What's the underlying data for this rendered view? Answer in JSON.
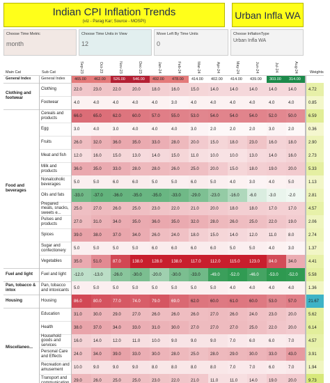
{
  "title": "Indian CPI Inflation Trends",
  "subtitle": "(viz - Parag Kar; Source - MOSPI)",
  "right_title": "Urban Infla WA",
  "controls": {
    "metric_label": "Choose Time Metric",
    "metric_value": "month",
    "units_label": "Choose Time Units in View",
    "units_value": "12",
    "shift_label": "Move Left By Time Units",
    "shift_value": "0",
    "type_label": "Choose InflationType",
    "type_value": "Urban Infla WA"
  },
  "headers": {
    "main_cat": "Main Cat",
    "sub_cat": "Sub Cat",
    "weights": "Weights"
  },
  "dates": [
    "Sep-23",
    "Oct-23",
    "Nov-23",
    "Dec-23",
    "Jan-24",
    "Feb-24",
    "Mar-24",
    "Apr-24",
    "May-24",
    "Jun-24",
    "Jul-24",
    "Aug-24"
  ],
  "groups": [
    {
      "name": "General Index",
      "rows": [
        {
          "sub": "General Index",
          "weight": "",
          "values": [
            "465.00",
            "462.00",
            "526.00",
            "546.00",
            "492.00",
            "478.00",
            "414.00",
            "402.00",
            "414.00",
            "439.00",
            "303.00",
            "314.00"
          ]
        }
      ]
    },
    {
      "name": "Clothing and footwear",
      "rows": [
        {
          "sub": "Clothing",
          "weight": "4.72",
          "values": [
            "22.0",
            "23.0",
            "22.0",
            "20.0",
            "18.0",
            "16.0",
            "15.0",
            "14.0",
            "14.0",
            "14.0",
            "14.0",
            "14.0"
          ]
        },
        {
          "sub": "Footwear",
          "weight": "0.85",
          "values": [
            "4.0",
            "4.0",
            "4.0",
            "4.0",
            "4.0",
            "3.0",
            "4.0",
            "4.0",
            "4.0",
            "4.0",
            "4.0",
            "4.0"
          ]
        }
      ]
    },
    {
      "name": "Food and beverages",
      "rows": [
        {
          "sub": "Cereals and products",
          "weight": "6.59",
          "values": [
            "66.0",
            "65.0",
            "62.0",
            "60.0",
            "57.0",
            "55.0",
            "53.0",
            "54.0",
            "54.0",
            "54.0",
            "52.0",
            "50.0"
          ]
        },
        {
          "sub": "Egg",
          "weight": "0.36",
          "values": [
            "3.0",
            "4.0",
            "3.0",
            "4.0",
            "4.0",
            "4.0",
            "3.0",
            "2.0",
            "2.0",
            "2.0",
            "3.0",
            "2.0"
          ]
        },
        {
          "sub": "Fruits",
          "weight": "2.90",
          "values": [
            "26.0",
            "32.0",
            "36.0",
            "35.0",
            "33.0",
            "28.0",
            "20.0",
            "15.0",
            "18.0",
            "23.0",
            "16.0",
            "18.0"
          ]
        },
        {
          "sub": "Meat and fish",
          "weight": "2.73",
          "values": [
            "12.0",
            "16.0",
            "15.0",
            "13.0",
            "14.0",
            "15.0",
            "11.0",
            "10.0",
            "10.0",
            "13.0",
            "14.0",
            "16.0"
          ]
        },
        {
          "sub": "Milk and products",
          "weight": "5.33",
          "values": [
            "36.0",
            "35.0",
            "33.0",
            "28.0",
            "28.0",
            "26.0",
            "25.0",
            "20.0",
            "15.0",
            "18.0",
            "19.0",
            "20.0"
          ]
        },
        {
          "sub": "Nonalcoholic beverages",
          "weight": "1.13",
          "values": [
            "5.0",
            "5.0",
            "6.0",
            "6.0",
            "5.0",
            "5.0",
            "6.0",
            "5.0",
            "4.0",
            "3.0",
            "4.0",
            "5.0"
          ]
        },
        {
          "sub": "Oils and fats",
          "weight": "2.81",
          "values": [
            "-33.0",
            "-37.0",
            "-36.0",
            "-35.0",
            "-35.0",
            "-33.0",
            "-29.0",
            "-23.0",
            "-16.0",
            "-6.0",
            "-3.0",
            "-2.0"
          ]
        },
        {
          "sub": "Prepared meals, snacks, sweets e...",
          "weight": "4.57",
          "values": [
            "25.0",
            "27.0",
            "26.0",
            "25.0",
            "23.0",
            "22.0",
            "21.0",
            "20.0",
            "18.0",
            "18.0",
            "17.0",
            "17.0"
          ]
        },
        {
          "sub": "Pulses and products",
          "weight": "2.06",
          "values": [
            "27.0",
            "31.0",
            "34.0",
            "35.0",
            "36.0",
            "35.0",
            "32.0",
            "28.0",
            "26.0",
            "25.0",
            "22.0",
            "19.0"
          ]
        },
        {
          "sub": "Spices",
          "weight": "2.74",
          "values": [
            "39.0",
            "38.0",
            "37.0",
            "34.0",
            "26.0",
            "24.0",
            "18.0",
            "15.0",
            "14.0",
            "12.0",
            "11.0",
            "8.0"
          ]
        },
        {
          "sub": "Sugar and confectionery",
          "weight": "1.37",
          "values": [
            "5.0",
            "5.0",
            "5.0",
            "5.0",
            "6.0",
            "6.0",
            "6.0",
            "6.0",
            "5.0",
            "5.0",
            "4.0",
            "3.0"
          ]
        },
        {
          "sub": "Vegetables",
          "weight": "4.41",
          "values": [
            "35.0",
            "51.0",
            "87.0",
            "138.0",
            "128.0",
            "138.0",
            "117.0",
            "112.0",
            "115.0",
            "123.0",
            "84.0",
            "34.0"
          ]
        }
      ]
    },
    {
      "name": "Fuel and light",
      "rows": [
        {
          "sub": "Fuel and light",
          "weight": "5.58",
          "values": [
            "-12.0",
            "-13.0",
            "-26.0",
            "-30.0",
            "-20.0",
            "-30.0",
            "-33.0",
            "-49.0",
            "-52.0",
            "-46.0",
            "-53.0",
            "-52.0"
          ]
        }
      ]
    },
    {
      "name": "Pan, tobacco & intox",
      "rows": [
        {
          "sub": "Pan, tobacco and intoxicants",
          "weight": "1.36",
          "values": [
            "5.0",
            "5.0",
            "5.0",
            "5.0",
            "5.0",
            "5.0",
            "5.0",
            "5.0",
            "4.0",
            "4.0",
            "4.0",
            "4.0"
          ]
        }
      ]
    },
    {
      "name": "Housing",
      "rows": [
        {
          "sub": "Housing",
          "weight": "21.67",
          "values": [
            "86.0",
            "80.0",
            "77.0",
            "74.0",
            "79.0",
            "69.0",
            "62.0",
            "60.0",
            "61.0",
            "60.0",
            "53.0",
            "57.0"
          ]
        }
      ]
    },
    {
      "name": "Miscellaneo...",
      "rows": [
        {
          "sub": "Education",
          "weight": "5.62",
          "values": [
            "31.0",
            "30.0",
            "29.0",
            "27.0",
            "26.0",
            "26.0",
            "26.0",
            "27.0",
            "26.0",
            "24.0",
            "23.0",
            "20.0"
          ]
        },
        {
          "sub": "Health",
          "weight": "6.14",
          "values": [
            "38.0",
            "37.0",
            "34.0",
            "33.0",
            "31.0",
            "30.0",
            "27.0",
            "27.0",
            "27.0",
            "25.0",
            "22.0",
            "20.0"
          ]
        },
        {
          "sub": "Household goods and services",
          "weight": "4.57",
          "values": [
            "16.0",
            "14.0",
            "12.0",
            "11.0",
            "10.0",
            "9.0",
            "9.0",
            "9.0",
            "7.0",
            "6.0",
            "6.0",
            "7.0"
          ]
        },
        {
          "sub": "Personal Care and Effects",
          "weight": "3.91",
          "values": [
            "24.0",
            "34.0",
            "39.0",
            "33.0",
            "30.0",
            "28.0",
            "25.0",
            "28.0",
            "29.0",
            "30.0",
            "33.0",
            "43.0"
          ]
        },
        {
          "sub": "Recreation and amusement",
          "weight": "1.94",
          "values": [
            "10.0",
            "9.0",
            "9.0",
            "9.0",
            "8.0",
            "8.0",
            "8.0",
            "8.0",
            "7.0",
            "7.0",
            "6.0",
            "7.0"
          ]
        },
        {
          "sub": "Transport and communication",
          "weight": "9.73",
          "values": [
            "29.0",
            "26.0",
            "25.0",
            "25.0",
            "23.0",
            "22.0",
            "21.0",
            "11.0",
            "11.0",
            "14.0",
            "19.0",
            "20.0"
          ]
        }
      ]
    }
  ]
}
